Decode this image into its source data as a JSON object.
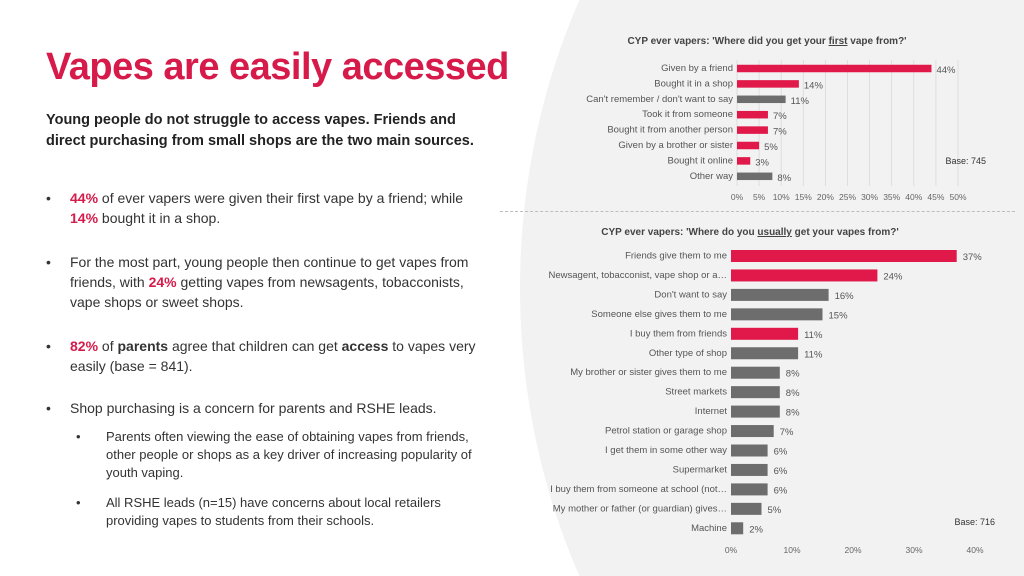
{
  "title": "Vapes are easily accessed",
  "intro": "Young people do not struggle to access vapes. Friends and direct purchasing from small shops are the two main sources.",
  "bullets": {
    "b1": {
      "v1": "44%",
      "t1": " of ever vapers were given their first vape by a friend; while ",
      "v2": "14%",
      "t2": " bought it in a shop."
    },
    "b2": {
      "t1": "For the most part, young people then continue to get vapes from friends, with ",
      "v1": "24%",
      "t2": " getting vapes from newsagents, tobacconists, vape shops or sweet shops."
    },
    "b3": {
      "v1": "82%",
      "t1": " of ",
      "w1": "parents",
      "t2": " agree that children can get ",
      "w2": "access",
      "t3": " to vapes very easily (base = 841)."
    },
    "b4": "Shop purchasing is a concern for parents and RSHE leads.",
    "sub1": "Parents often viewing the ease of obtaining vapes from friends, other people or shops as a key driver of increasing popularity of youth vaping.",
    "sub2": "All RSHE leads (n=15) have concerns about local retailers providing vapes to students from their schools."
  },
  "chart_data": [
    {
      "type": "bar",
      "orientation": "horizontal",
      "title_parts": [
        "CYP ever vapers: 'Where did you get your ",
        "first",
        " vape from?'"
      ],
      "categories": [
        "Given by a friend",
        "Bought it in a shop",
        "Can't remember / don't want to say",
        "Took it from someone",
        "Bought it from another person",
        "Given by a brother or sister",
        "Bought it online",
        "Other way"
      ],
      "values": [
        44,
        14,
        11,
        7,
        7,
        5,
        3,
        8
      ],
      "value_labels": [
        "44%",
        "14%",
        "11%",
        "7%",
        "7%",
        "5%",
        "3%",
        "8%"
      ],
      "colors": [
        "#e0194a",
        "#e0194a",
        "#6d6d6d",
        "#e0194a",
        "#e0194a",
        "#e0194a",
        "#e0194a",
        "#6d6d6d"
      ],
      "xlim": [
        0,
        50
      ],
      "xticks": [
        "0%",
        "5%",
        "10%",
        "15%",
        "20%",
        "25%",
        "30%",
        "35%",
        "40%",
        "45%",
        "50%"
      ],
      "grid": true,
      "base_label": "Base: 745"
    },
    {
      "type": "bar",
      "orientation": "horizontal",
      "title_parts": [
        "CYP ever vapers: 'Where do you ",
        "usually",
        " get your vapes from?'"
      ],
      "categories": [
        "Friends give them to me",
        "Newsagent, tobacconist, vape shop or a…",
        "Don't want to say",
        "Someone else gives them to me",
        "I buy them from friends",
        "Other type of shop",
        "My brother or sister gives them to me",
        "Street markets",
        "Internet",
        "Petrol station or garage shop",
        "I get them in some other way",
        "Supermarket",
        "I buy them from someone at school (not…",
        "My mother or father (or guardian) gives…",
        "Machine"
      ],
      "values": [
        37,
        24,
        16,
        15,
        11,
        11,
        8,
        8,
        8,
        7,
        6,
        6,
        6,
        5,
        2
      ],
      "value_labels": [
        "37%",
        "24%",
        "16%",
        "15%",
        "11%",
        "11%",
        "8%",
        "8%",
        "8%",
        "7%",
        "6%",
        "6%",
        "6%",
        "5%",
        "2%"
      ],
      "colors": [
        "#e0194a",
        "#e0194a",
        "#6d6d6d",
        "#6d6d6d",
        "#e0194a",
        "#6d6d6d",
        "#6d6d6d",
        "#6d6d6d",
        "#6d6d6d",
        "#6d6d6d",
        "#6d6d6d",
        "#6d6d6d",
        "#6d6d6d",
        "#6d6d6d",
        "#6d6d6d"
      ],
      "xlim": [
        0,
        40
      ],
      "xticks": [
        "0%",
        "10%",
        "20%",
        "30%",
        "40%"
      ],
      "grid": false,
      "base_label": "Base: 716"
    }
  ]
}
